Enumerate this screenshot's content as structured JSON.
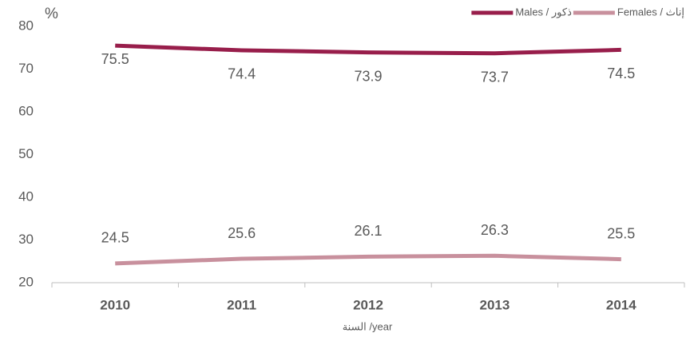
{
  "chart_data": {
    "type": "line",
    "y_label": "%",
    "x_label": "السنة /year",
    "categories": [
      "2010",
      "2011",
      "2012",
      "2013",
      "2014"
    ],
    "series": [
      {
        "name": "Males / ذكور",
        "color": "#981e4b",
        "values": [
          75.5,
          74.4,
          73.9,
          73.7,
          74.5
        ]
      },
      {
        "name": "Females / إناث",
        "color": "#c8909d",
        "values": [
          24.5,
          25.6,
          26.1,
          26.3,
          25.5
        ]
      }
    ],
    "ylim": [
      20,
      80
    ],
    "yticks": [
      20,
      30,
      40,
      50,
      60,
      70,
      80
    ],
    "grid": false,
    "legend": "top-right"
  }
}
